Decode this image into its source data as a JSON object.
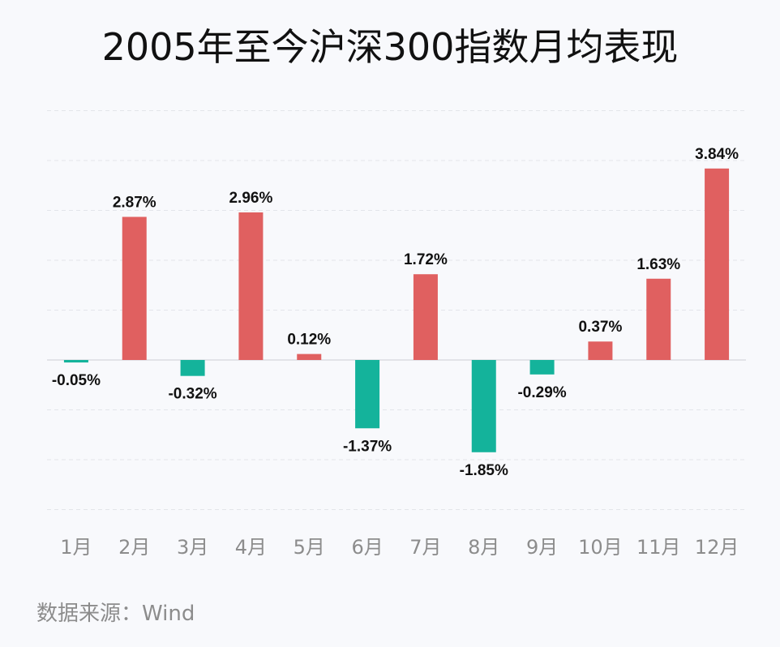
{
  "chart_data": {
    "type": "bar",
    "title": "2005年至今沪深300指数月均表现",
    "categories": [
      "1月",
      "2月",
      "3月",
      "4月",
      "5月",
      "6月",
      "7月",
      "8月",
      "9月",
      "10月",
      "11月",
      "12月"
    ],
    "values": [
      -0.05,
      2.87,
      -0.32,
      2.96,
      0.12,
      -1.37,
      1.72,
      -1.85,
      -0.29,
      0.37,
      1.63,
      3.84
    ],
    "value_labels": [
      "-0.05%",
      "2.87%",
      "-0.32%",
      "2.96%",
      "0.12%",
      "-1.37%",
      "1.72%",
      "-1.85%",
      "-0.29%",
      "0.37%",
      "1.63%",
      "3.84%"
    ],
    "ylim": [
      -3,
      5
    ],
    "grid": true,
    "xlabel": "",
    "ylabel": "",
    "colors": {
      "positive": "#e06060",
      "negative": "#14b39b"
    }
  },
  "source": "数据来源：Wind"
}
